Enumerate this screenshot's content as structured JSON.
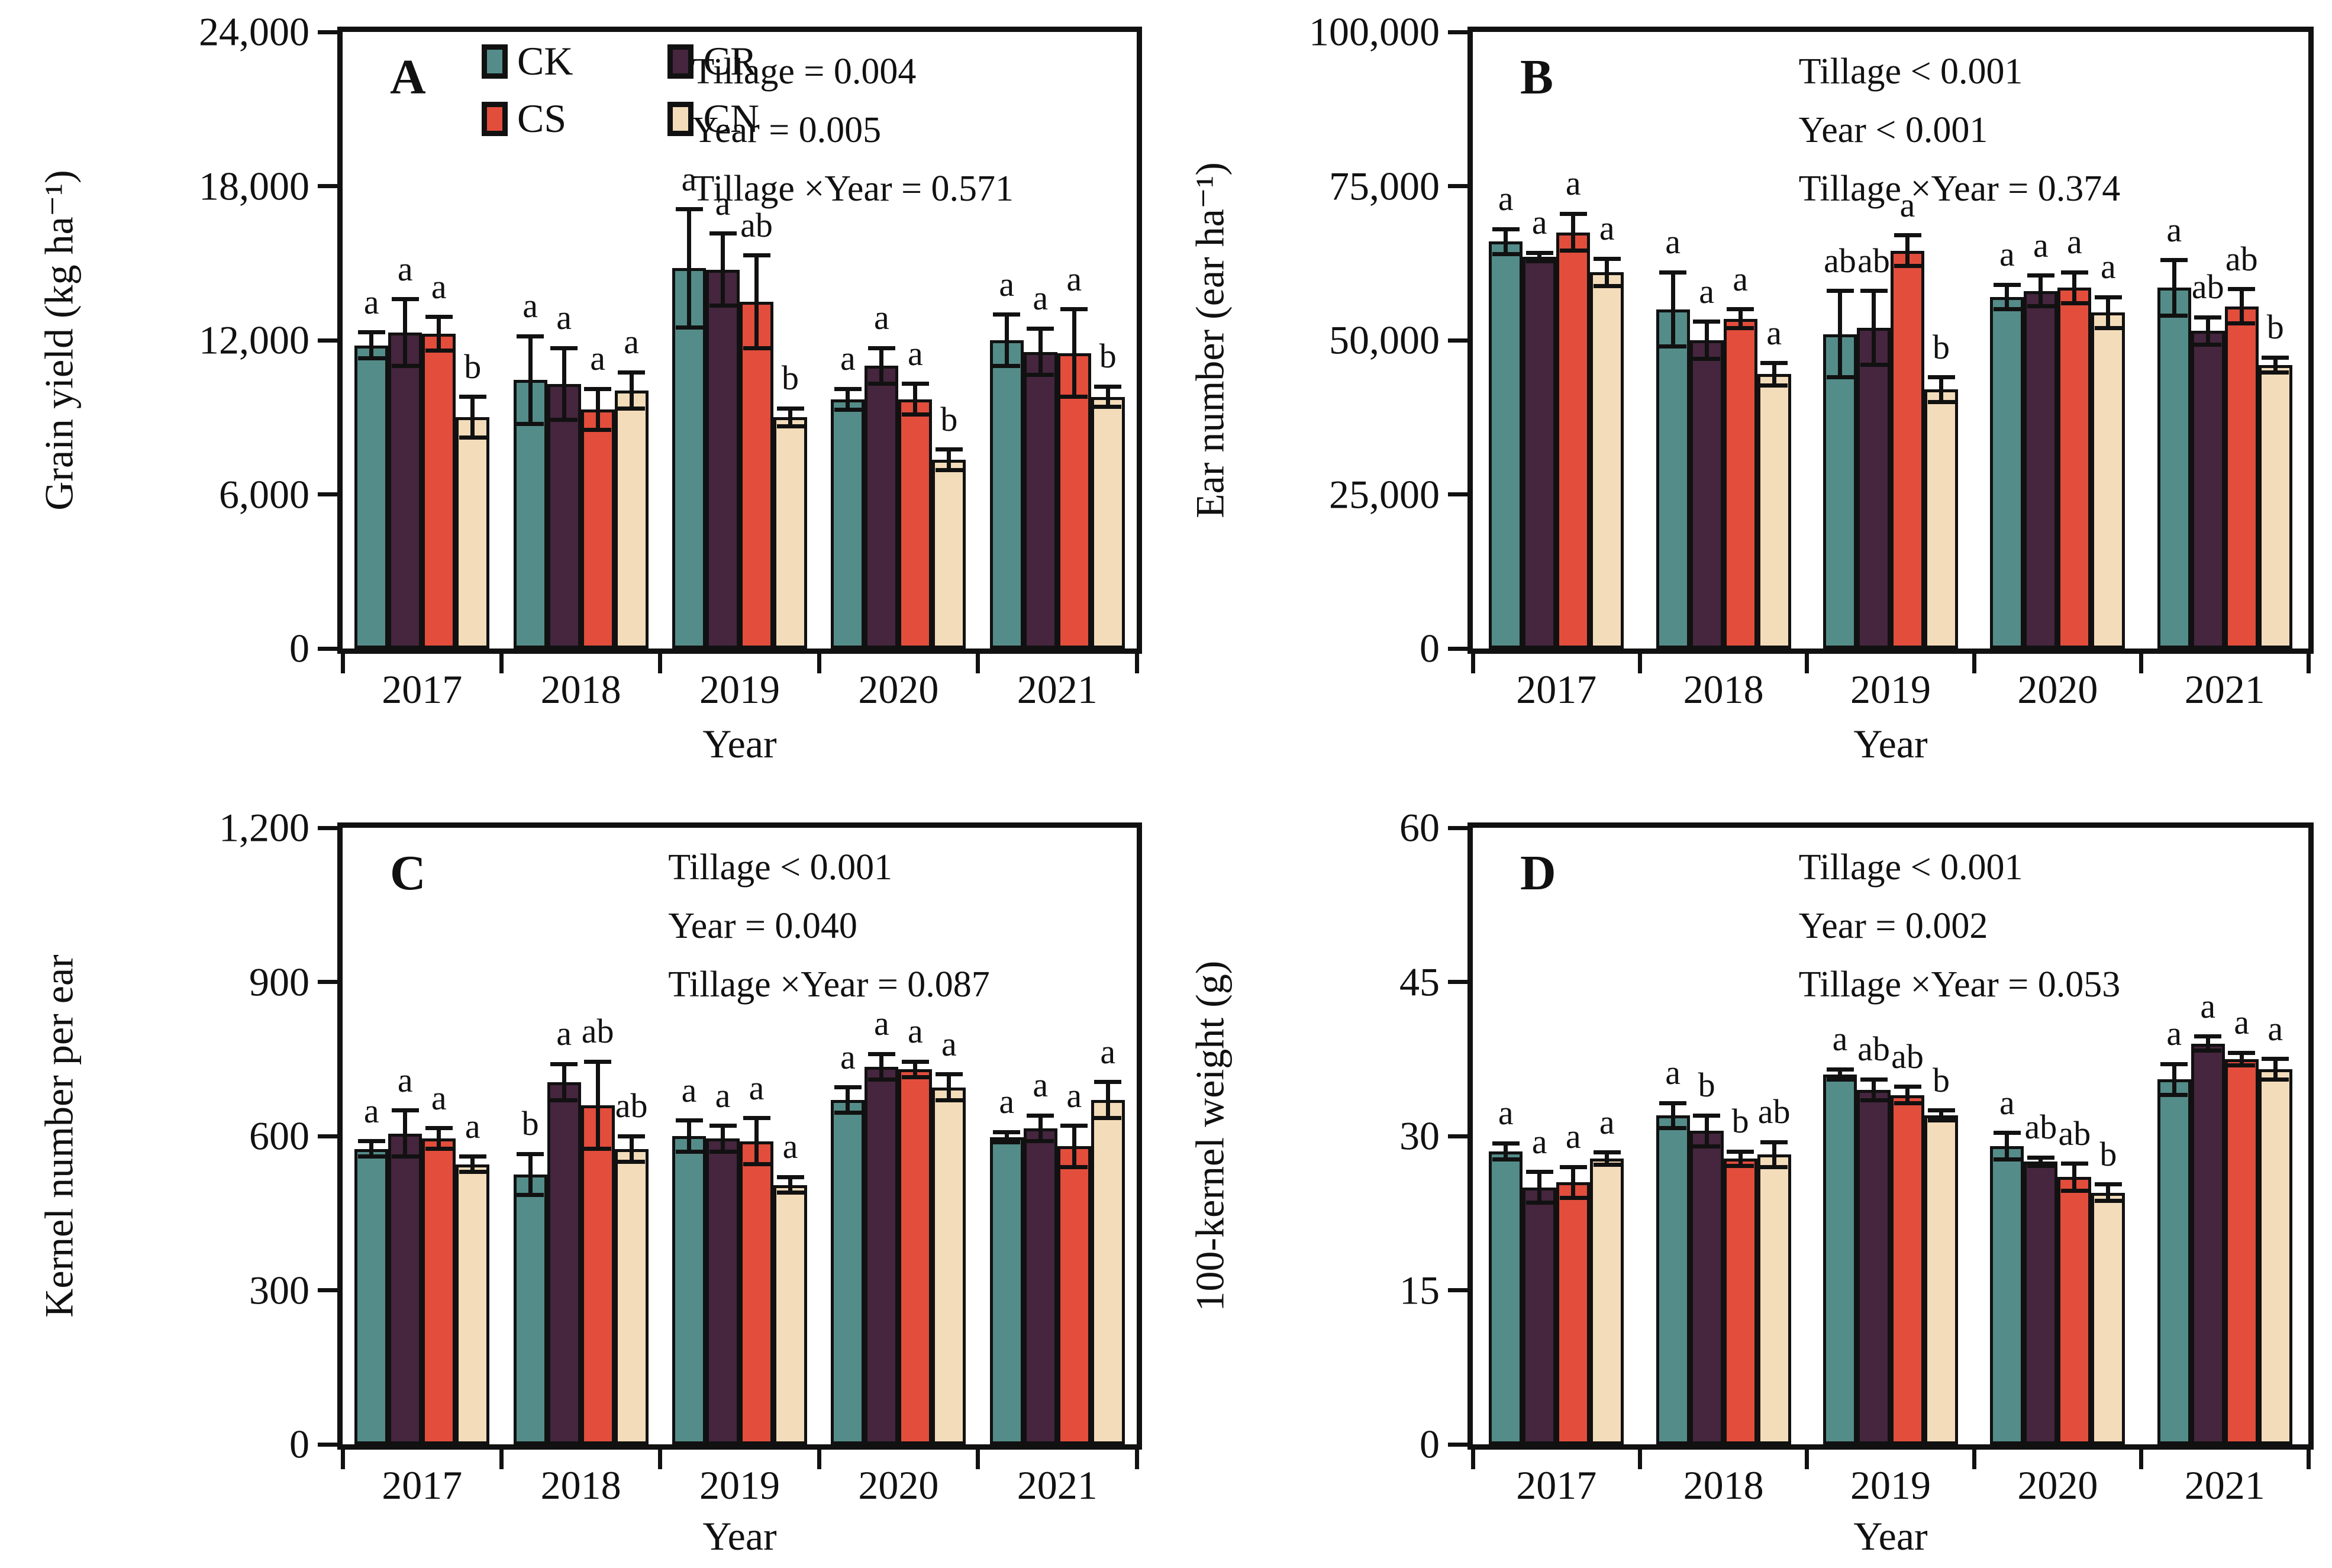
{
  "legend": {
    "items": [
      {
        "label": "CK",
        "color": "#548C89"
      },
      {
        "label": "CR",
        "color": "#45263E"
      },
      {
        "label": "CS",
        "color": "#E24D3C"
      },
      {
        "label": "CN",
        "color": "#F3DCBA"
      }
    ]
  },
  "chart_data": [
    {
      "panel_label": "A",
      "type": "bar",
      "ylabel": "Grain yield (kg ha⁻¹)",
      "xlabel": "Year",
      "ylim": [
        0,
        24000
      ],
      "yticks": [
        "0",
        "6,000",
        "12,000",
        "18,000",
        "24,000"
      ],
      "categories": [
        "2017",
        "2018",
        "2019",
        "2020",
        "2021"
      ],
      "series": [
        {
          "name": "CK",
          "values": [
            11800,
            10450,
            14800,
            9700,
            12000
          ],
          "errors": [
            500,
            1700,
            2300,
            400,
            1000
          ],
          "letters": [
            "a",
            "a",
            "a",
            "a",
            "a"
          ]
        },
        {
          "name": "CR",
          "values": [
            12300,
            10300,
            14750,
            11000,
            11550
          ],
          "errors": [
            1300,
            1400,
            1400,
            700,
            900
          ],
          "letters": [
            "a",
            "a",
            "a",
            "a",
            "a"
          ]
        },
        {
          "name": "CS",
          "values": [
            12250,
            9300,
            13500,
            9700,
            11500
          ],
          "errors": [
            650,
            800,
            1800,
            600,
            1700
          ],
          "letters": [
            "a",
            "a",
            "ab",
            "a",
            "a"
          ]
        },
        {
          "name": "CN",
          "values": [
            9000,
            10050,
            9000,
            7350,
            9800
          ],
          "errors": [
            800,
            700,
            350,
            400,
            400
          ],
          "letters": [
            "b",
            "a",
            "b",
            "b",
            "b"
          ]
        }
      ],
      "stats": [
        "Tillage = 0.004",
        "Year = 0.005",
        "Tillage ×Year = 0.571"
      ],
      "legend_position": "top-left-inside",
      "grid": false
    },
    {
      "panel_label": "B",
      "type": "bar",
      "ylabel": "Ear number (ear ha⁻¹)",
      "xlabel": "Year",
      "ylim": [
        0,
        100000
      ],
      "yticks": [
        "0",
        "25,000",
        "50,000",
        "75,000",
        "100,000"
      ],
      "categories": [
        "2017",
        "2018",
        "2019",
        "2020",
        "2021"
      ],
      "series": [
        {
          "name": "CK",
          "values": [
            66000,
            55000,
            51000,
            57000,
            58500
          ],
          "errors": [
            2000,
            6000,
            7000,
            2000,
            4500
          ],
          "letters": [
            "a",
            "a",
            "ab",
            "a",
            "a"
          ]
        },
        {
          "name": "CR",
          "values": [
            63500,
            50000,
            52000,
            58000,
            51500
          ],
          "errors": [
            700,
            3000,
            6000,
            2500,
            2200
          ],
          "letters": [
            "a",
            "a",
            "ab",
            "a",
            "ab"
          ]
        },
        {
          "name": "CS",
          "values": [
            67500,
            53500,
            64500,
            58500,
            55500
          ],
          "errors": [
            3000,
            1500,
            2500,
            2500,
            2800
          ],
          "letters": [
            "a",
            "a",
            "a",
            "a",
            "ab"
          ]
        },
        {
          "name": "CN",
          "values": [
            61000,
            44500,
            42000,
            54500,
            46000
          ],
          "errors": [
            2200,
            1800,
            2000,
            2500,
            1200
          ],
          "letters": [
            "a",
            "a",
            "b",
            "a",
            "b"
          ]
        }
      ],
      "stats": [
        "Tillage < 0.001",
        "Year < 0.001",
        "Tillage ×Year = 0.374"
      ],
      "grid": false
    },
    {
      "panel_label": "C",
      "type": "bar",
      "ylabel": "Kernel number per ear",
      "xlabel": "Year",
      "ylim": [
        0,
        1200
      ],
      "yticks": [
        "0",
        "300",
        "600",
        "900",
        "1,200"
      ],
      "categories": [
        "2017",
        "2018",
        "2019",
        "2020",
        "2021"
      ],
      "series": [
        {
          "name": "CK",
          "values": [
            575,
            525,
            600,
            670,
            598
          ],
          "errors": [
            15,
            40,
            30,
            25,
            10
          ],
          "letters": [
            "a",
            "b",
            "a",
            "a",
            "a"
          ]
        },
        {
          "name": "CR",
          "values": [
            605,
            705,
            595,
            735,
            615
          ],
          "errors": [
            45,
            35,
            25,
            25,
            25
          ],
          "letters": [
            "a",
            "a",
            "a",
            "a",
            "a"
          ]
        },
        {
          "name": "CS",
          "values": [
            595,
            660,
            590,
            730,
            580
          ],
          "errors": [
            20,
            85,
            45,
            15,
            40
          ],
          "letters": [
            "a",
            "ab",
            "a",
            "a",
            "a"
          ]
        },
        {
          "name": "CN",
          "values": [
            545,
            575,
            505,
            695,
            670
          ],
          "errors": [
            15,
            25,
            15,
            25,
            35
          ],
          "letters": [
            "a",
            "ab",
            "a",
            "a",
            "a"
          ]
        }
      ],
      "stats": [
        "Tillage < 0.001",
        "Year = 0.040",
        "Tillage ×Year = 0.087"
      ],
      "grid": false
    },
    {
      "panel_label": "D",
      "type": "bar",
      "ylabel": "100-kernel weight (g)",
      "xlabel": "Year",
      "ylim": [
        0,
        60
      ],
      "yticks": [
        "0",
        "15",
        "30",
        "45",
        "60"
      ],
      "categories": [
        "2017",
        "2018",
        "2019",
        "2020",
        "2021"
      ],
      "series": [
        {
          "name": "CK",
          "values": [
            28.5,
            32,
            36,
            29,
            35.5
          ],
          "errors": [
            0.8,
            1.2,
            0.5,
            1.3,
            1.5
          ],
          "letters": [
            "a",
            "a",
            "a",
            "a",
            "a"
          ]
        },
        {
          "name": "CR",
          "values": [
            25,
            30.5,
            34.5,
            27.5,
            39
          ],
          "errors": [
            1.5,
            1.5,
            1.0,
            0.4,
            0.7
          ],
          "letters": [
            "a",
            "b",
            "ab",
            "ab",
            "a"
          ]
        },
        {
          "name": "CS",
          "values": [
            25.5,
            27.8,
            34,
            26,
            37.5
          ],
          "errors": [
            1.5,
            0.7,
            0.8,
            1.3,
            0.6
          ],
          "letters": [
            "a",
            "b",
            "ab",
            "ab",
            "a"
          ]
        },
        {
          "name": "CN",
          "values": [
            27.8,
            28.2,
            32,
            24.5,
            36.5
          ],
          "errors": [
            0.6,
            1.2,
            0.5,
            0.8,
            1.0
          ],
          "letters": [
            "a",
            "ab",
            "b",
            "b",
            "a"
          ]
        }
      ],
      "stats": [
        "Tillage < 0.001",
        "Year = 0.002",
        "Tillage ×Year = 0.053"
      ],
      "grid": false
    }
  ]
}
